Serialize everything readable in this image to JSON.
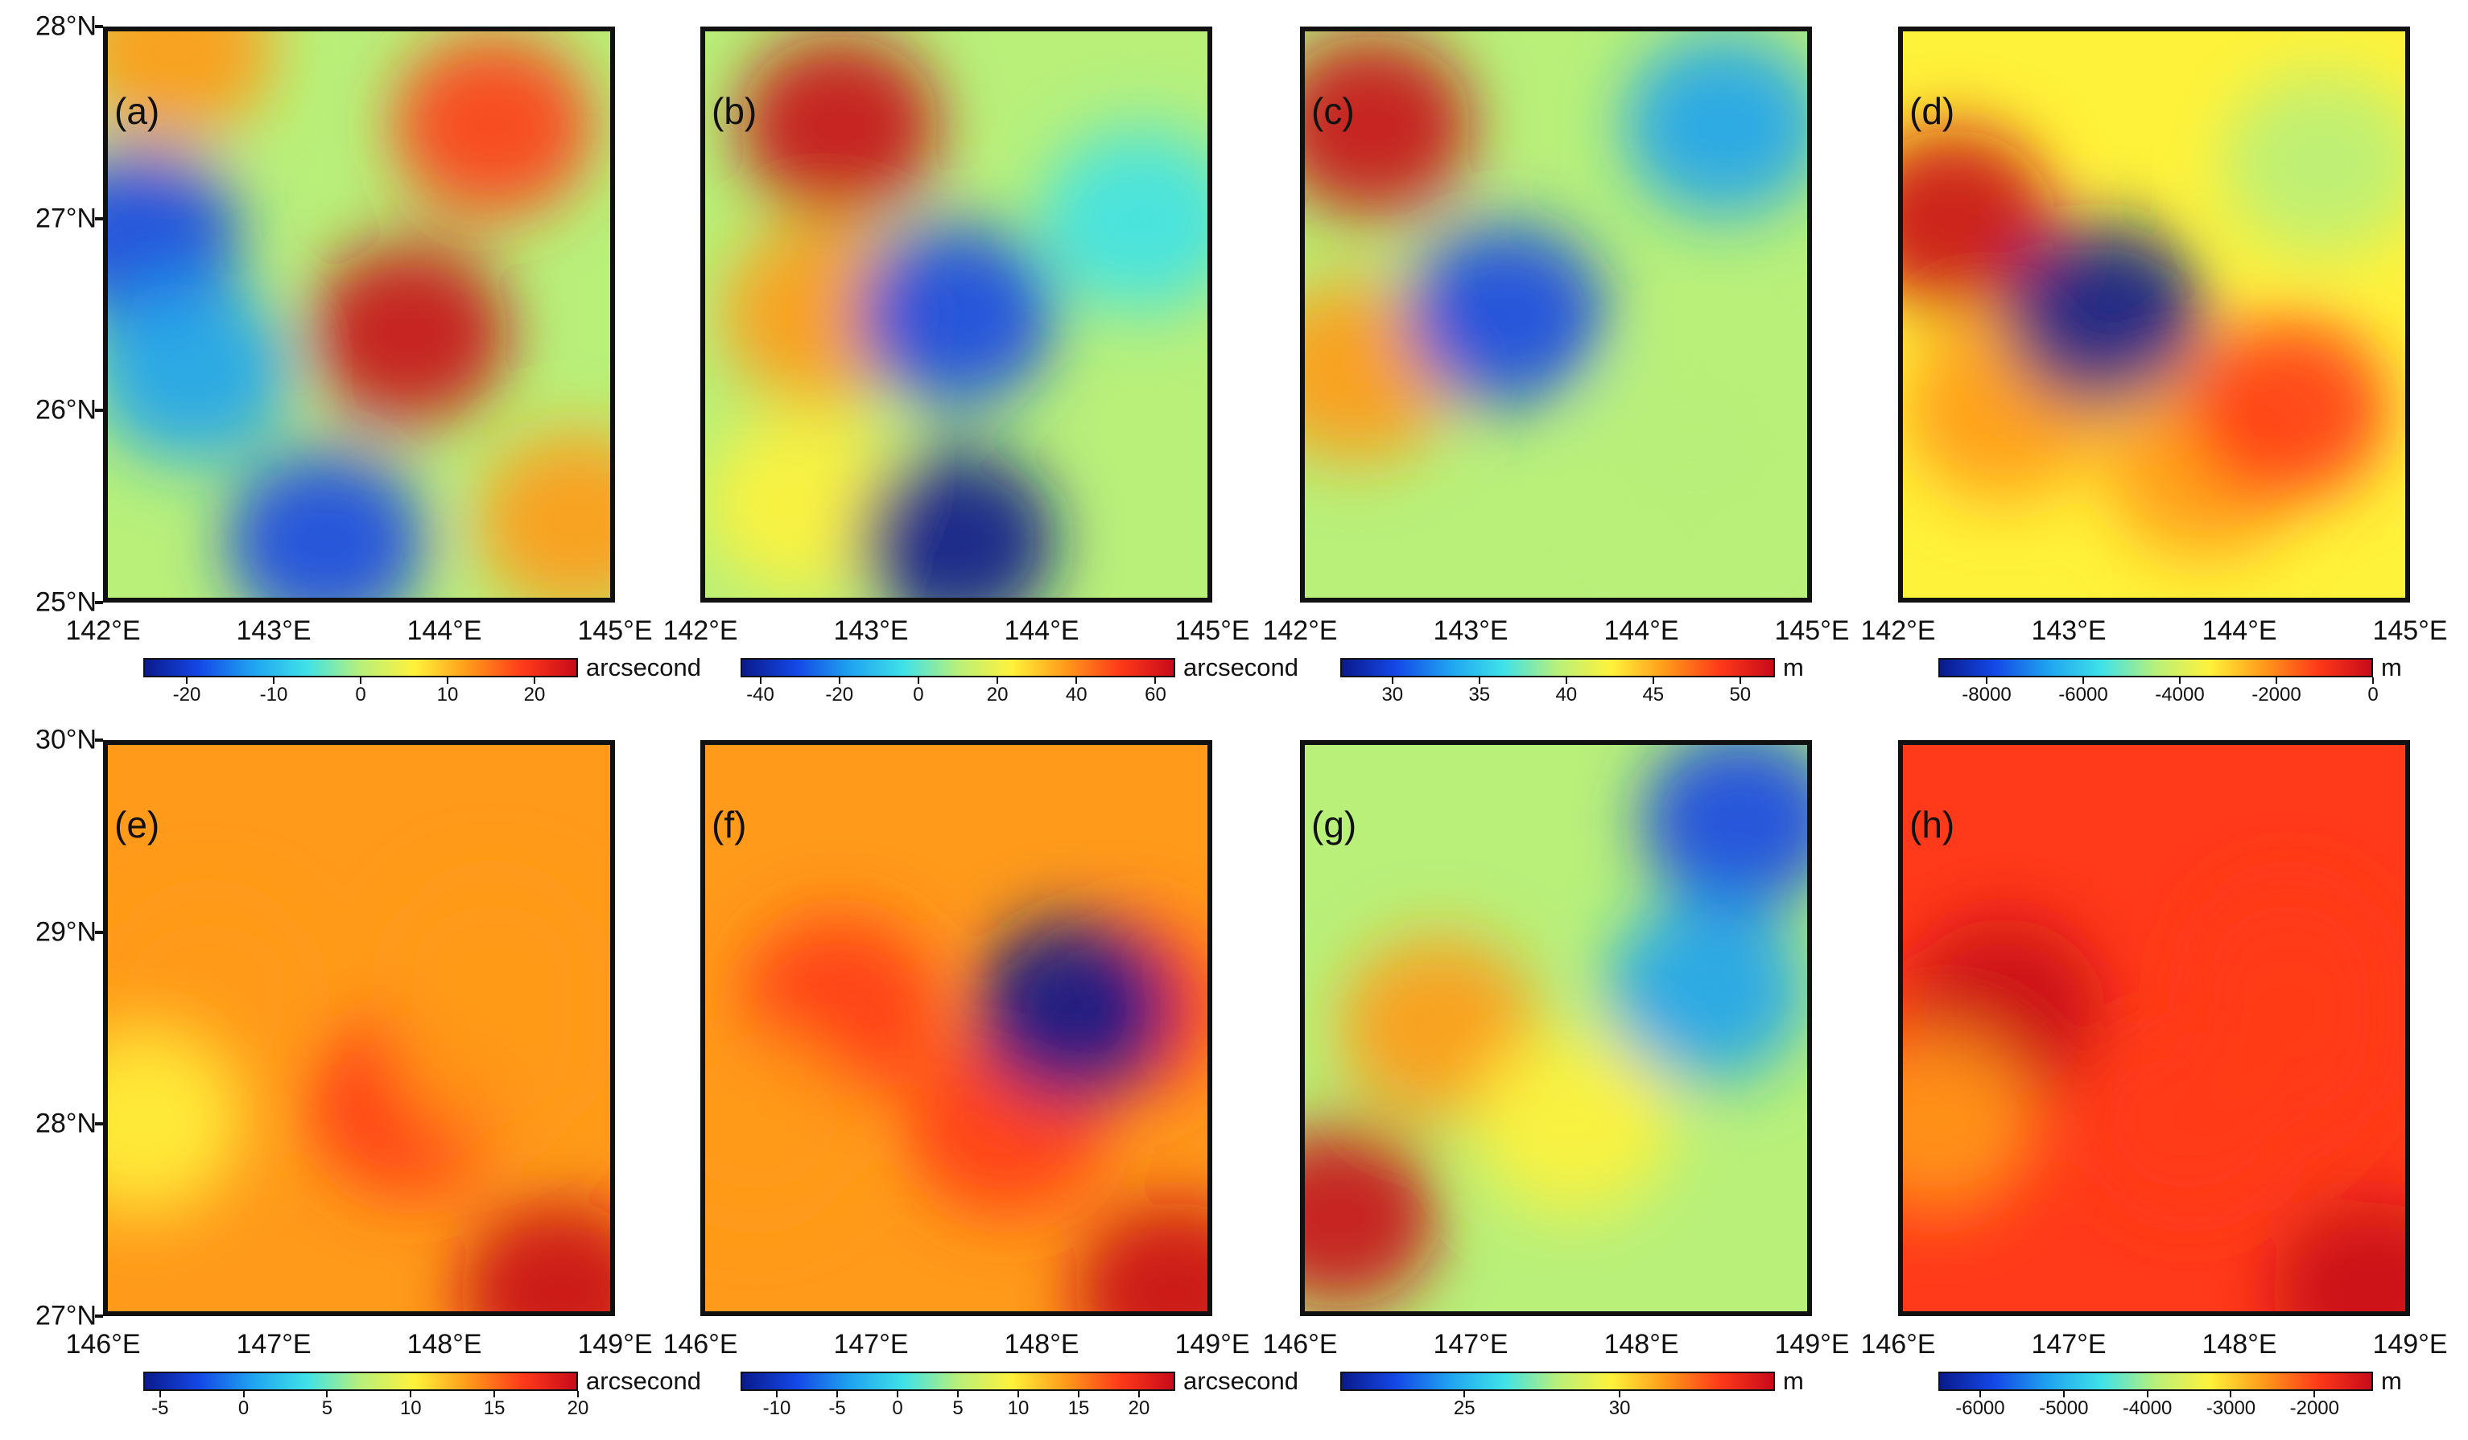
{
  "chart_data": [
    {
      "type": "heatmap",
      "label": "(a)",
      "x_ticks": [
        "142°E",
        "143°E",
        "144°E",
        "145°E"
      ],
      "y_ticks": [
        "28°N",
        "27°N",
        "26°N",
        "25°N"
      ],
      "xlim": [
        142,
        145
      ],
      "ylim": [
        25,
        28
      ],
      "colorbar": {
        "ticks": [
          "-20",
          "-10",
          "0",
          "10",
          "20"
        ],
        "range": [
          -25,
          25
        ],
        "unit": "arcsecond"
      },
      "features": [
        {
          "lon": 143.8,
          "lat": 26.4,
          "value": 22
        },
        {
          "lon": 144.3,
          "lat": 27.5,
          "value": 18
        },
        {
          "lon": 142.4,
          "lat": 27.9,
          "value": 15
        },
        {
          "lon": 142.2,
          "lat": 26.9,
          "value": -20
        },
        {
          "lon": 142.5,
          "lat": 26.2,
          "value": -15
        },
        {
          "lon": 143.3,
          "lat": 25.3,
          "value": -20
        },
        {
          "lon": 144.8,
          "lat": 25.4,
          "value": 12
        }
      ]
    },
    {
      "type": "heatmap",
      "label": "(b)",
      "x_ticks": [
        "142°E",
        "143°E",
        "144°E",
        "145°E"
      ],
      "y_ticks": [],
      "xlim": [
        142,
        145
      ],
      "ylim": [
        25,
        28
      ],
      "colorbar": {
        "ticks": [
          "-40",
          "-20",
          "0",
          "20",
          "40",
          "60"
        ],
        "range": [
          -45,
          65
        ],
        "unit": "arcsecond"
      },
      "features": [
        {
          "lon": 142.8,
          "lat": 27.5,
          "value": 60
        },
        {
          "lon": 142.7,
          "lat": 26.5,
          "value": 40
        },
        {
          "lon": 142.6,
          "lat": 25.5,
          "value": 30
        },
        {
          "lon": 143.5,
          "lat": 26.5,
          "value": -30
        },
        {
          "lon": 143.5,
          "lat": 25.3,
          "value": -40
        },
        {
          "lon": 144.6,
          "lat": 27.0,
          "value": 0
        }
      ]
    },
    {
      "type": "heatmap",
      "label": "(c)",
      "x_ticks": [
        "142°E",
        "143°E",
        "144°E",
        "145°E"
      ],
      "y_ticks": [],
      "xlim": [
        142,
        145
      ],
      "ylim": [
        25,
        28
      ],
      "colorbar": {
        "ticks": [
          "30",
          "35",
          "40",
          "45",
          "50"
        ],
        "range": [
          27,
          52
        ],
        "unit": "m"
      },
      "features": [
        {
          "lon": 142.4,
          "lat": 27.5,
          "value": 51
        },
        {
          "lon": 142.3,
          "lat": 26.2,
          "value": 46
        },
        {
          "lon": 143.2,
          "lat": 26.5,
          "value": 29
        },
        {
          "lon": 144.5,
          "lat": 27.5,
          "value": 34
        },
        {
          "lon": 144.3,
          "lat": 25.8,
          "value": 38
        }
      ]
    },
    {
      "type": "heatmap",
      "label": "(d)",
      "x_ticks": [
        "142°E",
        "143°E",
        "144°E",
        "145°E"
      ],
      "y_ticks": [],
      "xlim": [
        142,
        145
      ],
      "ylim": [
        25,
        28
      ],
      "colorbar": {
        "ticks": [
          "-8000",
          "-6000",
          "-4000",
          "-2000",
          "0"
        ],
        "range": [
          -9000,
          0
        ],
        "unit": "m"
      },
      "features": [
        {
          "lon": 142.3,
          "lat": 27.0,
          "value": -500
        },
        {
          "lon": 142.6,
          "lat": 26.0,
          "value": -2000
        },
        {
          "lon": 143.2,
          "lat": 26.5,
          "value": -8500
        },
        {
          "lon": 143.8,
          "lat": 25.7,
          "value": -2500
        },
        {
          "lon": 144.3,
          "lat": 26.0,
          "value": -800
        },
        {
          "lon": 144.5,
          "lat": 27.3,
          "value": -4500
        }
      ]
    },
    {
      "type": "heatmap",
      "label": "(e)",
      "x_ticks": [
        "146°E",
        "147°E",
        "148°E",
        "149°E"
      ],
      "y_ticks": [
        "30°N",
        "29°N",
        "28°N",
        "27°N"
      ],
      "xlim": [
        146,
        149
      ],
      "ylim": [
        27,
        30
      ],
      "colorbar": {
        "ticks": [
          "-5",
          "0",
          "5",
          "10",
          "15",
          "20"
        ],
        "range": [
          -6,
          20
        ],
        "unit": "arcsecond"
      },
      "features": [
        {
          "lon": 146.6,
          "lat": 28.7,
          "value": 15
        },
        {
          "lon": 147.8,
          "lat": 28.1,
          "value": 18
        },
        {
          "lon": 148.3,
          "lat": 28.4,
          "value": 14
        },
        {
          "lon": 148.3,
          "lat": 28.8,
          "value": 12
        },
        {
          "lon": 148.7,
          "lat": 27.1,
          "value": 20
        },
        {
          "lon": 146.2,
          "lat": 28.0,
          "value": 10
        }
      ]
    },
    {
      "type": "heatmap",
      "label": "(f)",
      "x_ticks": [
        "146°E",
        "147°E",
        "148°E",
        "149°E"
      ],
      "y_ticks": [],
      "xlim": [
        146,
        149
      ],
      "ylim": [
        27,
        30
      ],
      "colorbar": {
        "ticks": [
          "-10",
          "-5",
          "0",
          "5",
          "10",
          "15",
          "20"
        ],
        "range": [
          -13,
          23
        ],
        "unit": "arcsecond"
      },
      "features": [
        {
          "lon": 146.8,
          "lat": 28.6,
          "value": 20
        },
        {
          "lon": 147.8,
          "lat": 28.0,
          "value": 18
        },
        {
          "lon": 148.5,
          "lat": 28.6,
          "value": 17
        },
        {
          "lon": 148.2,
          "lat": 28.6,
          "value": -12
        },
        {
          "lon": 148.8,
          "lat": 27.1,
          "value": 22
        },
        {
          "lon": 146.3,
          "lat": 28.0,
          "value": 15
        }
      ]
    },
    {
      "type": "heatmap",
      "label": "(g)",
      "x_ticks": [
        "146°E",
        "147°E",
        "148°E",
        "149°E"
      ],
      "y_ticks": [],
      "xlim": [
        146,
        149
      ],
      "ylim": [
        27,
        30
      ],
      "colorbar": {
        "ticks": [
          "25",
          "30"
        ],
        "range": [
          21,
          35
        ],
        "unit": "m"
      },
      "features": [
        {
          "lon": 146.2,
          "lat": 27.5,
          "value": 35
        },
        {
          "lon": 146.8,
          "lat": 28.5,
          "value": 32
        },
        {
          "lon": 147.6,
          "lat": 28.0,
          "value": 30
        },
        {
          "lon": 148.6,
          "lat": 29.6,
          "value": 22
        },
        {
          "lon": 148.4,
          "lat": 28.7,
          "value": 25
        }
      ]
    },
    {
      "type": "heatmap",
      "label": "(h)",
      "x_ticks": [
        "146°E",
        "147°E",
        "148°E",
        "149°E"
      ],
      "y_ticks": [],
      "xlim": [
        146,
        149
      ],
      "ylim": [
        27,
        30
      ],
      "colorbar": {
        "ticks": [
          "-6000",
          "-5000",
          "-4000",
          "-3000",
          "-2000"
        ],
        "range": [
          -6500,
          -1300
        ],
        "unit": "m"
      },
      "features": [
        {
          "lon": 146.6,
          "lat": 28.6,
          "value": -1500
        },
        {
          "lon": 147.7,
          "lat": 28.0,
          "value": -2000
        },
        {
          "lon": 148.3,
          "lat": 28.4,
          "value": -1800
        },
        {
          "lon": 148.3,
          "lat": 28.8,
          "value": -2200
        },
        {
          "lon": 148.8,
          "lat": 27.1,
          "value": -1500
        },
        {
          "lon": 146.2,
          "lat": 28.0,
          "value": -2500
        }
      ]
    }
  ],
  "colors": {
    "colormap": [
      "#0a1a8c",
      "#1447e6",
      "#1fa3f0",
      "#3fe2e8",
      "#b8f07a",
      "#fff23a",
      "#ff9a1a",
      "#ff3a1a",
      "#c80a1a"
    ],
    "frame": "#111111"
  }
}
